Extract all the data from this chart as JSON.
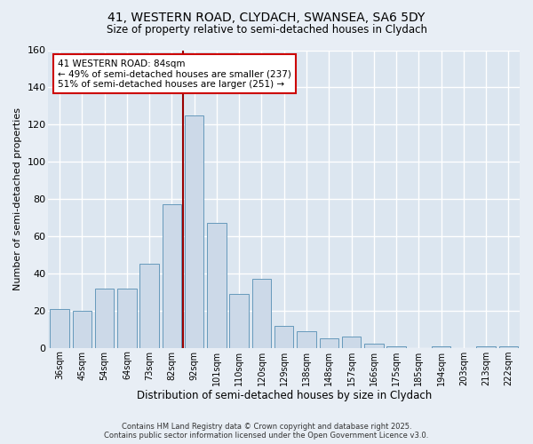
{
  "title_line1": "41, WESTERN ROAD, CLYDACH, SWANSEA, SA6 5DY",
  "title_line2": "Size of property relative to semi-detached houses in Clydach",
  "xlabel": "Distribution of semi-detached houses by size in Clydach",
  "ylabel": "Number of semi-detached properties",
  "categories": [
    "36sqm",
    "45sqm",
    "54sqm",
    "64sqm",
    "73sqm",
    "82sqm",
    "92sqm",
    "101sqm",
    "110sqm",
    "120sqm",
    "129sqm",
    "138sqm",
    "148sqm",
    "157sqm",
    "166sqm",
    "175sqm",
    "185sqm",
    "194sqm",
    "203sqm",
    "213sqm",
    "222sqm"
  ],
  "bar_heights": [
    21,
    20,
    32,
    32,
    45,
    77,
    125,
    67,
    29,
    37,
    12,
    9,
    5,
    6,
    2,
    1,
    0,
    1,
    0,
    1,
    1
  ],
  "bar_color": "#ccd9e8",
  "bar_edge_color": "#6699bb",
  "vline_color": "#990000",
  "annotation_title": "41 WESTERN ROAD: 84sqm",
  "annotation_line1": "← 49% of semi-detached houses are smaller (237)",
  "annotation_line2": "51% of semi-detached houses are larger (251) →",
  "annotation_box_color": "#ffffff",
  "annotation_box_edge": "#cc0000",
  "ylim": [
    0,
    160
  ],
  "yticks": [
    0,
    20,
    40,
    60,
    80,
    100,
    120,
    140,
    160
  ],
  "footer_line1": "Contains HM Land Registry data © Crown copyright and database right 2025.",
  "footer_line2": "Contains public sector information licensed under the Open Government Licence v3.0.",
  "bg_color": "#e8eef5",
  "plot_bg_color": "#dce6f0",
  "grid_color": "#ffffff"
}
